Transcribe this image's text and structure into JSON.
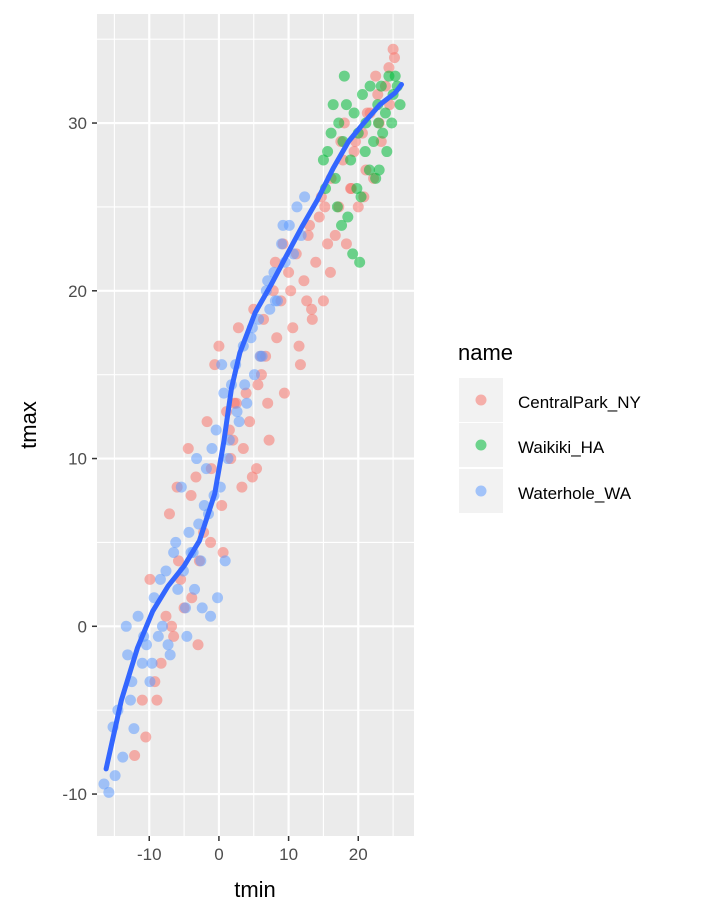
{
  "chart_data": {
    "type": "scatter",
    "xlabel": "tmin",
    "ylabel": "tmax",
    "xlim": [
      -17.5,
      28
    ],
    "ylim": [
      -12.5,
      36.5
    ],
    "x_ticks": [
      -10,
      0,
      10,
      20
    ],
    "y_ticks": [
      -10,
      0,
      10,
      20,
      30
    ],
    "x_tick_labels": [
      "-10",
      "0",
      "10",
      "20"
    ],
    "y_tick_labels": [
      "-10",
      "0",
      "10",
      "20",
      "30"
    ],
    "grid": true,
    "legend": {
      "title": "name",
      "position": "right",
      "entries": [
        "CentralPark_NY",
        "Waikiki_HA",
        "Waterhole_WA"
      ]
    },
    "colors": {
      "CentralPark_NY": "#F8766D",
      "Waikiki_HA": "#00BA38",
      "Waterhole_WA": "#619CFF",
      "smooth": "#3366FF",
      "panel": "#EBEBEB",
      "grid": "#FFFFFF",
      "text": "#4D4D4D"
    },
    "series": [
      {
        "name": "CentralPark_NY",
        "x": [
          -12.1,
          -11.0,
          -10.5,
          -9.9,
          -8.9,
          -8.3,
          -7.6,
          -7.1,
          -6.5,
          -6.0,
          -5.5,
          -5.0,
          -4.4,
          -3.9,
          -3.3,
          -2.8,
          -2.2,
          -1.7,
          -1.1,
          -0.6,
          0.0,
          0.6,
          1.1,
          1.7,
          2.2,
          2.8,
          3.3,
          3.9,
          4.4,
          5.0,
          5.6,
          6.1,
          6.7,
          7.2,
          7.8,
          8.3,
          8.9,
          9.4,
          10.0,
          10.6,
          11.1,
          11.7,
          12.2,
          12.8,
          13.3,
          13.9,
          14.4,
          15.0,
          15.6,
          16.1,
          16.7,
          17.2,
          17.8,
          18.3,
          18.9,
          19.4,
          20.0,
          20.6,
          21.1,
          21.7,
          22.2,
          22.8,
          23.3,
          23.9,
          24.4,
          25.0,
          -3.0,
          1.5,
          4.8,
          8.1,
          11.5,
          14.7,
          18.0,
          21.3,
          2.5,
          6.0,
          9.2,
          12.6,
          16.0,
          19.6,
          23.0,
          -5.8,
          -1.2,
          3.5,
          7.0,
          10.3,
          13.4,
          17.5,
          20.8,
          24.5,
          0.4,
          5.4,
          -9.2,
          -6.8,
          -4.0,
          2.0,
          6.4,
          13.0,
          15.2,
          19.0,
          22.5,
          25.2
        ],
        "y": [
          -7.7,
          -4.4,
          -6.6,
          2.8,
          -4.4,
          -2.2,
          0.6,
          6.7,
          -0.6,
          8.3,
          2.8,
          1.1,
          10.6,
          1.7,
          8.9,
          3.9,
          5.6,
          12.2,
          9.4,
          15.6,
          16.7,
          4.4,
          12.8,
          10.0,
          13.3,
          17.8,
          8.3,
          13.9,
          12.2,
          18.9,
          14.4,
          15.0,
          16.1,
          11.1,
          20.0,
          17.2,
          19.4,
          13.9,
          21.1,
          17.8,
          22.2,
          15.6,
          20.6,
          23.3,
          18.9,
          21.7,
          24.4,
          19.4,
          22.8,
          26.7,
          23.3,
          25.0,
          27.8,
          22.8,
          26.1,
          28.3,
          25.0,
          29.4,
          27.2,
          30.6,
          26.7,
          31.7,
          28.9,
          32.2,
          33.3,
          34.4,
          -1.1,
          11.7,
          8.9,
          21.7,
          16.7,
          25.6,
          30.0,
          30.6,
          13.3,
          16.1,
          22.8,
          19.4,
          21.1,
          28.9,
          30.0,
          3.9,
          5.0,
          10.6,
          13.3,
          20.0,
          18.3,
          28.9,
          25.6,
          31.1,
          7.2,
          9.4,
          -3.3,
          0.0,
          7.8,
          11.1,
          18.3,
          23.9,
          25.0,
          26.1,
          32.8,
          33.9
        ]
      },
      {
        "name": "Waikiki_HA",
        "x": [
          15.0,
          15.6,
          16.1,
          16.7,
          17.2,
          17.8,
          18.3,
          18.9,
          19.4,
          20.0,
          20.6,
          21.1,
          21.7,
          22.2,
          22.8,
          23.3,
          23.9,
          24.4,
          25.0,
          25.6,
          17.0,
          18.5,
          19.8,
          21.0,
          22.5,
          23.5,
          24.8,
          16.4,
          18.0,
          19.2,
          20.4,
          21.6,
          22.9,
          24.1,
          25.3,
          26.0,
          15.3,
          17.6,
          20.2,
          23.0
        ],
        "y": [
          27.8,
          28.3,
          29.4,
          26.7,
          30.0,
          28.9,
          31.1,
          27.8,
          30.6,
          29.4,
          31.7,
          30.0,
          32.2,
          28.9,
          31.1,
          32.2,
          30.6,
          32.8,
          31.7,
          32.2,
          25.0,
          24.4,
          26.1,
          28.3,
          26.7,
          29.4,
          30.0,
          31.1,
          32.8,
          22.2,
          25.6,
          27.2,
          30.0,
          28.3,
          32.8,
          31.1,
          26.1,
          23.9,
          21.7,
          27.2
        ]
      },
      {
        "name": "Waterhole_WA",
        "x": [
          -16.5,
          -15.8,
          -15.2,
          -14.5,
          -13.8,
          -13.3,
          -12.7,
          -12.2,
          -11.6,
          -11.0,
          -10.4,
          -9.9,
          -9.3,
          -8.7,
          -8.1,
          -7.6,
          -7.0,
          -6.5,
          -5.9,
          -5.4,
          -4.8,
          -4.3,
          -3.7,
          -3.2,
          -2.6,
          -2.1,
          -1.5,
          -1.0,
          -0.4,
          0.2,
          0.7,
          1.3,
          1.8,
          2.4,
          2.9,
          3.5,
          4.0,
          4.6,
          5.1,
          5.7,
          6.2,
          6.8,
          7.3,
          7.9,
          8.4,
          9.0,
          9.5,
          10.1,
          10.7,
          11.2,
          11.8,
          12.3,
          -13.1,
          -10.8,
          -8.4,
          -6.2,
          -4.0,
          -1.8,
          0.4,
          2.6,
          4.8,
          7.0,
          9.2,
          -14.9,
          -9.6,
          -5.1,
          -0.7,
          3.7,
          8.1,
          -12.5,
          -7.3,
          -2.9,
          1.5,
          5.9,
          -3.5,
          -1.2,
          -0.2,
          0.9,
          -4.6,
          -2.4
        ],
        "y": [
          -9.4,
          -9.9,
          -6.0,
          -5.0,
          -7.8,
          0.0,
          -4.4,
          -6.1,
          0.6,
          -2.2,
          -1.1,
          -3.3,
          1.7,
          -0.6,
          0.0,
          3.3,
          -1.7,
          4.4,
          2.2,
          8.3,
          1.1,
          5.6,
          4.4,
          10.0,
          3.9,
          7.2,
          6.7,
          10.6,
          11.7,
          8.3,
          13.9,
          10.0,
          14.4,
          15.6,
          12.2,
          16.7,
          13.3,
          17.2,
          15.0,
          18.3,
          16.1,
          20.0,
          18.9,
          21.1,
          19.4,
          22.8,
          21.7,
          23.9,
          22.2,
          25.0,
          23.3,
          25.6,
          -1.7,
          -0.6,
          2.8,
          5.0,
          4.4,
          9.4,
          15.6,
          12.8,
          17.8,
          20.6,
          23.9,
          -8.9,
          -2.2,
          3.3,
          7.8,
          14.4,
          19.4,
          -3.3,
          -1.1,
          6.1,
          11.1,
          16.1,
          2.2,
          0.6,
          1.7,
          3.9,
          -0.6,
          1.1
        ]
      }
    ],
    "smooth": {
      "x": [
        -16.2,
        -14.0,
        -11.7,
        -9.5,
        -7.3,
        -5.0,
        -2.8,
        -0.6,
        0.7,
        1.8,
        3.0,
        5.2,
        7.4,
        9.7,
        11.9,
        14.1,
        16.4,
        18.6,
        20.8,
        23.1,
        25.3,
        26.2
      ],
      "y": [
        -8.5,
        -4.4,
        -1.3,
        0.9,
        2.4,
        3.6,
        5.1,
        7.9,
        11.0,
        14.2,
        16.3,
        18.7,
        20.3,
        22.1,
        23.8,
        25.4,
        27.3,
        28.9,
        30.0,
        31.1,
        31.8,
        32.3
      ]
    }
  }
}
